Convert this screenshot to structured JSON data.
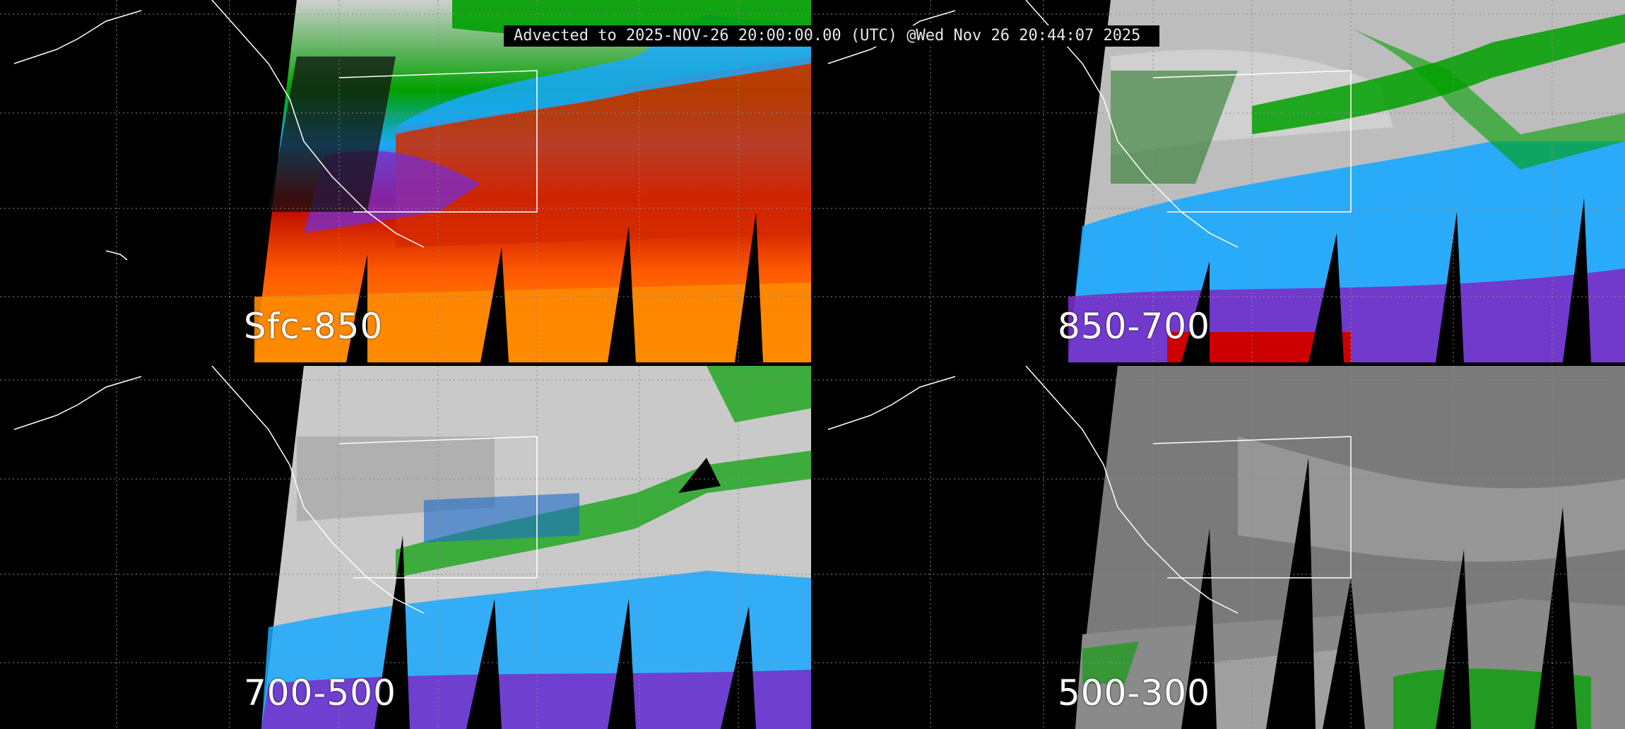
{
  "header": {
    "timestamp": "Advected to 2025-NOV-26 20:00:00.00 (UTC) @Wed Nov 26 20:44:07 2025"
  },
  "panels": [
    {
      "id": "sfc-850",
      "label": "Sfc-850",
      "palette": "layer-pw-color",
      "colors": [
        "#b40000",
        "#ff5a00",
        "#ff9900",
        "#7a2cc8",
        "#1aa8ff",
        "#00a000",
        "#cfcfcf"
      ]
    },
    {
      "id": "850-700",
      "label": "850-700",
      "palette": "layer-pw-color",
      "colors": [
        "#1aa8ff",
        "#7a2cc8",
        "#00a000",
        "#cfcfcf",
        "#cc0000"
      ]
    },
    {
      "id": "700-500",
      "label": "700-500",
      "palette": "layer-pw-color",
      "colors": [
        "#d0d0d0",
        "#00a000",
        "#1aa8ff",
        "#7a2cc8"
      ]
    },
    {
      "id": "500-300",
      "label": "500-300",
      "palette": "layer-pw-gray",
      "colors": [
        "#7a7a7a",
        "#a9a9a9",
        "#00a000"
      ]
    }
  ],
  "map": {
    "graticule_color": "#8a8a8a",
    "coastline_color": "#ffffff",
    "background_color": "#000000"
  }
}
